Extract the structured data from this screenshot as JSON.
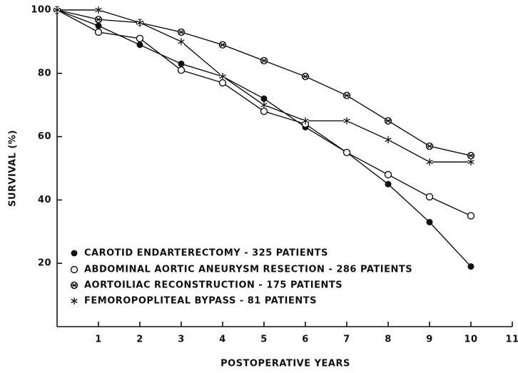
{
  "chart_data": {
    "type": "line",
    "xlabel": "POSTOPERATIVE YEARS",
    "ylabel": "SURVIVAL (%)",
    "x": [
      0,
      1,
      2,
      3,
      4,
      5,
      6,
      7,
      8,
      9,
      10
    ],
    "xlim": [
      0,
      11
    ],
    "xticks": [
      1,
      2,
      3,
      4,
      5,
      6,
      7,
      8,
      9,
      10,
      11
    ],
    "ylim": [
      0,
      100
    ],
    "yticks": [
      20,
      40,
      60,
      80,
      100
    ],
    "legend": "lower left",
    "series": [
      {
        "name": "CAROTID ENDARTERECTOMY - 325 PATIENTS",
        "color": "#111111",
        "marker": "filled-circle",
        "values": [
          100,
          95,
          89,
          83,
          79,
          72,
          63,
          55,
          45,
          33,
          19
        ]
      },
      {
        "name": "ABDOMINAL AORTIC ANEURYSM RESECTION - 286 PATIENTS",
        "color": "#111111",
        "marker": "open-circle",
        "values": [
          100,
          93,
          91,
          81,
          77,
          68,
          64,
          55,
          48,
          41,
          35
        ]
      },
      {
        "name": "AORTOILIAC RECONSTRUCTION - 175 PATIENTS",
        "color": "#111111",
        "marker": "crossed-circle",
        "values": [
          100,
          97,
          96,
          93,
          89,
          84,
          79,
          73,
          65,
          57,
          54
        ]
      },
      {
        "name": "FEMOROPOPLITEAL BYPASS - 81 PATIENTS",
        "color": "#111111",
        "marker": "asterisk",
        "values": [
          100,
          100,
          96,
          90,
          79,
          70,
          65,
          65,
          59,
          52,
          52
        ]
      }
    ]
  }
}
